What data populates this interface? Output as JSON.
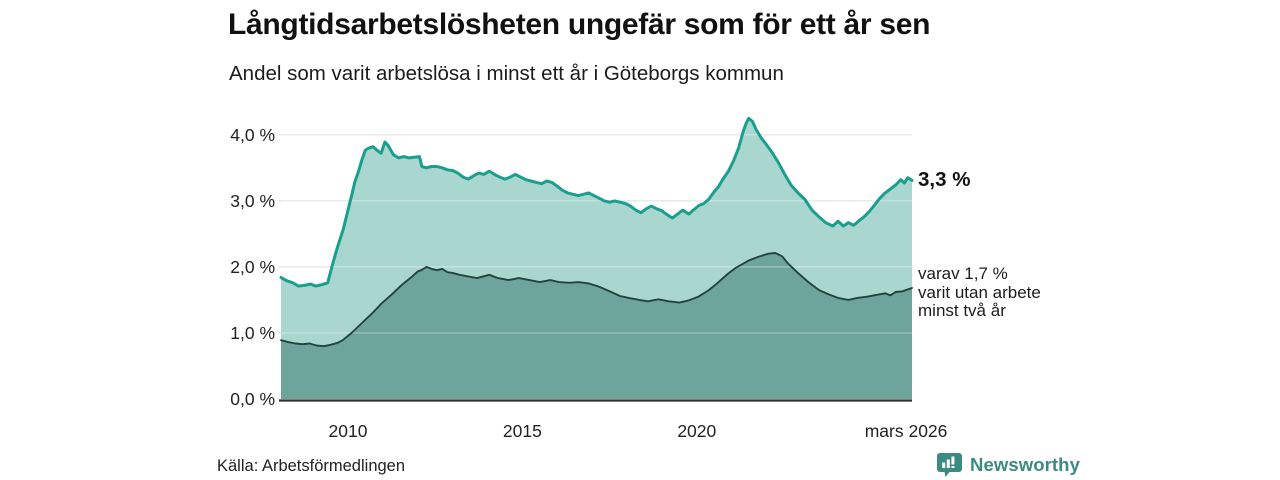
{
  "title": "Långtidsarbetslösheten ungefär som för ett år sen",
  "subtitle": "Andel som varit arbetslösa i minst ett år i Göteborgs kommun",
  "source": "Källa: Arbetsförmedlingen",
  "branding": {
    "name": "Newsworthy",
    "icon": "newsworthy-bar-chart-bubble",
    "color": "#3b8b81"
  },
  "annotations": {
    "latest_total": "3,3 %",
    "two_year_note_lines": [
      "varav 1,7 %",
      "varit utan arbete",
      "minst två år"
    ]
  },
  "colors": {
    "series1_line": "#1a9e8d",
    "series1_fill": "#a9d7d0",
    "series2_line": "#25433e",
    "series2_fill": "#6da49c",
    "gridline": "#d8d8d8",
    "axis": "#2e2e2e",
    "brand_teal": "#3b8b81"
  },
  "chart_data": {
    "type": "area",
    "title": "Långtidsarbetslösheten ungefär som för ett år sen",
    "subtitle": "Andel som varit arbetslösa i minst ett år i Göteborgs kommun",
    "xlabel": "",
    "ylabel": "",
    "grid": true,
    "legend": "none (direct line labels at right)",
    "xlim": [
      2008.08,
      2026.17
    ],
    "ylim": [
      0,
      4.3
    ],
    "y_ticks": [
      {
        "label": "4,0 %",
        "value": 4.0
      },
      {
        "label": "3,0 %",
        "value": 3.0
      },
      {
        "label": "2,0 %",
        "value": 2.0
      },
      {
        "label": "1,0 %",
        "value": 1.0
      },
      {
        "label": "0,0 %",
        "value": 0.0
      }
    ],
    "x_ticks": [
      {
        "label": "2010",
        "year": 2010
      },
      {
        "label": "2015",
        "year": 2015
      },
      {
        "label": "2020",
        "year": 2020
      },
      {
        "label": "mars 2026",
        "year": 2026.0
      }
    ],
    "series": [
      {
        "name": "Andel som varit arbetslösa i minst ett år",
        "color": "#1a9e8d",
        "fill": "#a9d7d0",
        "latest_value_pct": 3.3,
        "points": [
          [
            2008.08,
            1.84
          ],
          [
            2008.25,
            1.79
          ],
          [
            2008.42,
            1.76
          ],
          [
            2008.58,
            1.71
          ],
          [
            2008.75,
            1.72
          ],
          [
            2008.92,
            1.74
          ],
          [
            2009.08,
            1.71
          ],
          [
            2009.25,
            1.73
          ],
          [
            2009.42,
            1.76
          ],
          [
            2009.58,
            2.08
          ],
          [
            2009.7,
            2.3
          ],
          [
            2009.86,
            2.56
          ],
          [
            2010.0,
            2.86
          ],
          [
            2010.11,
            3.09
          ],
          [
            2010.2,
            3.29
          ],
          [
            2010.3,
            3.44
          ],
          [
            2010.4,
            3.62
          ],
          [
            2010.5,
            3.77
          ],
          [
            2010.6,
            3.8
          ],
          [
            2010.72,
            3.82
          ],
          [
            2010.85,
            3.76
          ],
          [
            2010.95,
            3.72
          ],
          [
            2011.06,
            3.89
          ],
          [
            2011.15,
            3.84
          ],
          [
            2011.3,
            3.7
          ],
          [
            2011.45,
            3.65
          ],
          [
            2011.6,
            3.67
          ],
          [
            2011.75,
            3.65
          ],
          [
            2011.9,
            3.66
          ],
          [
            2012.05,
            3.67
          ],
          [
            2012.12,
            3.52
          ],
          [
            2012.25,
            3.5
          ],
          [
            2012.4,
            3.52
          ],
          [
            2012.55,
            3.52
          ],
          [
            2012.7,
            3.5
          ],
          [
            2012.85,
            3.47
          ],
          [
            2013.0,
            3.46
          ],
          [
            2013.15,
            3.42
          ],
          [
            2013.3,
            3.36
          ],
          [
            2013.45,
            3.33
          ],
          [
            2013.6,
            3.38
          ],
          [
            2013.75,
            3.42
          ],
          [
            2013.9,
            3.4
          ],
          [
            2014.05,
            3.45
          ],
          [
            2014.2,
            3.4
          ],
          [
            2014.35,
            3.36
          ],
          [
            2014.5,
            3.33
          ],
          [
            2014.65,
            3.36
          ],
          [
            2014.8,
            3.4
          ],
          [
            2014.95,
            3.36
          ],
          [
            2015.1,
            3.32
          ],
          [
            2015.25,
            3.3
          ],
          [
            2015.4,
            3.28
          ],
          [
            2015.55,
            3.26
          ],
          [
            2015.7,
            3.3
          ],
          [
            2015.85,
            3.28
          ],
          [
            2016.0,
            3.22
          ],
          [
            2016.15,
            3.16
          ],
          [
            2016.3,
            3.12
          ],
          [
            2016.45,
            3.1
          ],
          [
            2016.6,
            3.08
          ],
          [
            2016.75,
            3.1
          ],
          [
            2016.9,
            3.12
          ],
          [
            2017.05,
            3.08
          ],
          [
            2017.2,
            3.04
          ],
          [
            2017.35,
            3.0
          ],
          [
            2017.5,
            2.98
          ],
          [
            2017.65,
            3.0
          ],
          [
            2017.8,
            2.98
          ],
          [
            2017.95,
            2.96
          ],
          [
            2018.1,
            2.92
          ],
          [
            2018.25,
            2.86
          ],
          [
            2018.4,
            2.82
          ],
          [
            2018.55,
            2.88
          ],
          [
            2018.7,
            2.92
          ],
          [
            2018.85,
            2.88
          ],
          [
            2019.0,
            2.85
          ],
          [
            2019.15,
            2.79
          ],
          [
            2019.3,
            2.74
          ],
          [
            2019.45,
            2.8
          ],
          [
            2019.6,
            2.86
          ],
          [
            2019.77,
            2.8
          ],
          [
            2019.9,
            2.86
          ],
          [
            2020.06,
            2.93
          ],
          [
            2020.2,
            2.96
          ],
          [
            2020.34,
            3.02
          ],
          [
            2020.5,
            3.14
          ],
          [
            2020.63,
            3.22
          ],
          [
            2020.75,
            3.33
          ],
          [
            2020.91,
            3.45
          ],
          [
            2021.05,
            3.6
          ],
          [
            2021.2,
            3.8
          ],
          [
            2021.33,
            4.05
          ],
          [
            2021.42,
            4.18
          ],
          [
            2021.49,
            4.25
          ],
          [
            2021.6,
            4.2
          ],
          [
            2021.7,
            4.08
          ],
          [
            2021.85,
            3.95
          ],
          [
            2022.0,
            3.85
          ],
          [
            2022.15,
            3.74
          ],
          [
            2022.34,
            3.58
          ],
          [
            2022.5,
            3.42
          ],
          [
            2022.7,
            3.24
          ],
          [
            2022.9,
            3.12
          ],
          [
            2023.1,
            3.02
          ],
          [
            2023.3,
            2.86
          ],
          [
            2023.5,
            2.76
          ],
          [
            2023.7,
            2.67
          ],
          [
            2023.9,
            2.62
          ],
          [
            2024.05,
            2.69
          ],
          [
            2024.2,
            2.62
          ],
          [
            2024.35,
            2.67
          ],
          [
            2024.5,
            2.63
          ],
          [
            2024.65,
            2.7
          ],
          [
            2024.8,
            2.76
          ],
          [
            2024.95,
            2.84
          ],
          [
            2025.1,
            2.94
          ],
          [
            2025.25,
            3.04
          ],
          [
            2025.4,
            3.12
          ],
          [
            2025.55,
            3.18
          ],
          [
            2025.7,
            3.24
          ],
          [
            2025.85,
            3.32
          ],
          [
            2025.95,
            3.27
          ],
          [
            2026.05,
            3.35
          ],
          [
            2026.17,
            3.31
          ]
        ]
      },
      {
        "name": "varav varit utan arbete minst två år",
        "color": "#25433e",
        "fill": "#6da49c",
        "latest_value_pct": 1.7,
        "points": [
          [
            2008.08,
            0.89
          ],
          [
            2008.3,
            0.86
          ],
          [
            2008.5,
            0.84
          ],
          [
            2008.7,
            0.83
          ],
          [
            2008.9,
            0.84
          ],
          [
            2009.1,
            0.81
          ],
          [
            2009.3,
            0.8
          ],
          [
            2009.5,
            0.82
          ],
          [
            2009.7,
            0.85
          ],
          [
            2009.85,
            0.89
          ],
          [
            2010.1,
            1.0
          ],
          [
            2010.4,
            1.15
          ],
          [
            2010.7,
            1.3
          ],
          [
            2010.97,
            1.45
          ],
          [
            2011.25,
            1.58
          ],
          [
            2011.55,
            1.73
          ],
          [
            2011.85,
            1.86
          ],
          [
            2012.0,
            1.93
          ],
          [
            2012.1,
            1.95
          ],
          [
            2012.25,
            2.0
          ],
          [
            2012.4,
            1.97
          ],
          [
            2012.55,
            1.95
          ],
          [
            2012.7,
            1.97
          ],
          [
            2012.85,
            1.92
          ],
          [
            2013.0,
            1.91
          ],
          [
            2013.2,
            1.88
          ],
          [
            2013.5,
            1.85
          ],
          [
            2013.7,
            1.83
          ],
          [
            2014.05,
            1.88
          ],
          [
            2014.3,
            1.83
          ],
          [
            2014.6,
            1.8
          ],
          [
            2014.9,
            1.83
          ],
          [
            2015.2,
            1.8
          ],
          [
            2015.5,
            1.77
          ],
          [
            2015.8,
            1.8
          ],
          [
            2016.05,
            1.77
          ],
          [
            2016.35,
            1.76
          ],
          [
            2016.6,
            1.77
          ],
          [
            2016.9,
            1.75
          ],
          [
            2017.2,
            1.7
          ],
          [
            2017.5,
            1.63
          ],
          [
            2017.8,
            1.56
          ],
          [
            2018.05,
            1.53
          ],
          [
            2018.35,
            1.5
          ],
          [
            2018.6,
            1.48
          ],
          [
            2018.9,
            1.51
          ],
          [
            2019.2,
            1.48
          ],
          [
            2019.5,
            1.46
          ],
          [
            2019.75,
            1.49
          ],
          [
            2020.05,
            1.55
          ],
          [
            2020.35,
            1.65
          ],
          [
            2020.6,
            1.76
          ],
          [
            2020.9,
            1.9
          ],
          [
            2021.1,
            1.98
          ],
          [
            2021.5,
            2.1
          ],
          [
            2021.75,
            2.15
          ],
          [
            2022.05,
            2.2
          ],
          [
            2022.25,
            2.21
          ],
          [
            2022.45,
            2.16
          ],
          [
            2022.6,
            2.06
          ],
          [
            2022.9,
            1.91
          ],
          [
            2023.2,
            1.77
          ],
          [
            2023.5,
            1.65
          ],
          [
            2023.8,
            1.58
          ],
          [
            2024.05,
            1.53
          ],
          [
            2024.35,
            1.5
          ],
          [
            2024.6,
            1.53
          ],
          [
            2024.9,
            1.55
          ],
          [
            2025.2,
            1.58
          ],
          [
            2025.4,
            1.6
          ],
          [
            2025.55,
            1.57
          ],
          [
            2025.7,
            1.62
          ],
          [
            2025.9,
            1.63
          ],
          [
            2026.05,
            1.66
          ],
          [
            2026.17,
            1.68
          ]
        ]
      }
    ]
  }
}
